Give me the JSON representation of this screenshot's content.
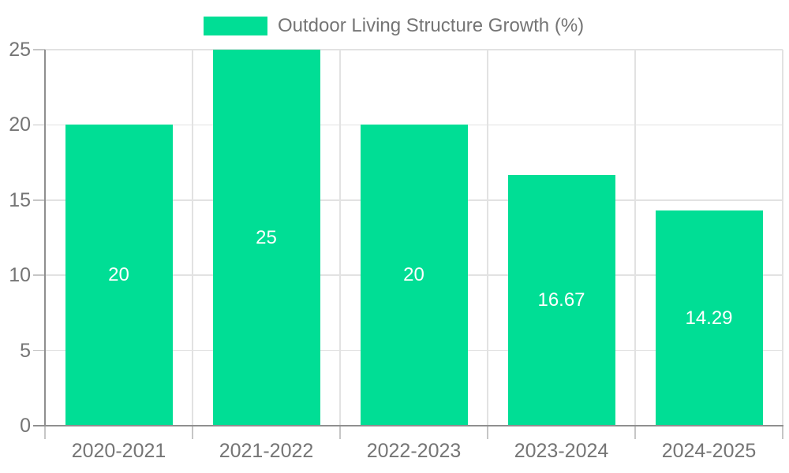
{
  "chart_data": {
    "type": "bar",
    "title": "Outdoor Living Structure Growth (%)",
    "categories": [
      "2020-2021",
      "2021-2022",
      "2022-2023",
      "2023-2024",
      "2024-2025"
    ],
    "series": [
      {
        "name": "Outdoor Living Structure Growth (%)",
        "values": [
          20,
          25,
          20,
          16.67,
          14.29
        ],
        "data_labels": [
          "20",
          "25",
          "20",
          "16.67",
          "14.29"
        ]
      }
    ],
    "xlabel": "",
    "ylabel": "",
    "ylim": [
      0,
      25
    ],
    "yticks": [
      0,
      5,
      10,
      15,
      20,
      25
    ],
    "grid": true,
    "legend_position": "top",
    "colors": {
      "bar": "#00de95",
      "axis_line": "#8f8f8f",
      "grid_line": "#e2e2e2",
      "tick_mark": "#c6c6c6",
      "axis_text": "#757575",
      "bar_label_text": "#ffffff",
      "background": "#ffffff"
    }
  }
}
